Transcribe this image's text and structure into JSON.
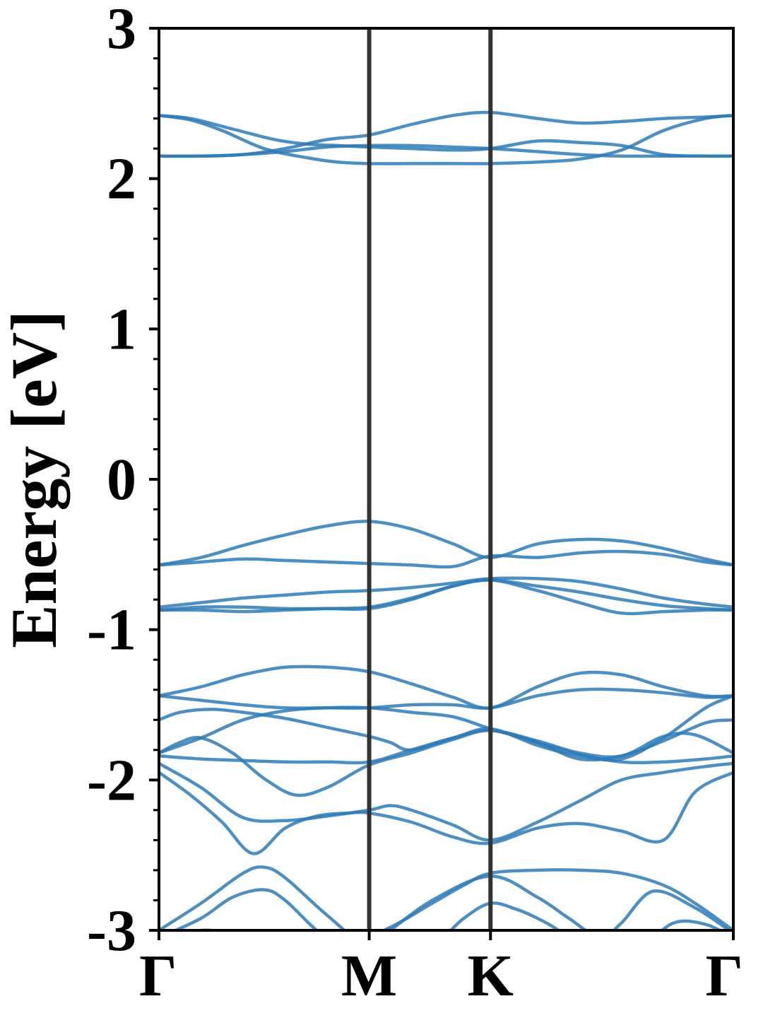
{
  "chart_data": {
    "type": "line",
    "title": "",
    "xlabel": "",
    "ylabel": "Energy [eV]",
    "ylim": [
      -3,
      3
    ],
    "y_ticks": [
      "3",
      "2",
      "1",
      "0",
      "-1",
      "-2",
      "-3"
    ],
    "y_tick_values": [
      3,
      2,
      1,
      0,
      -1,
      -2,
      -3
    ],
    "y_minor_step": 0.2,
    "x_ticks": [
      "Γ",
      "M",
      "K",
      "Γ"
    ],
    "x_tick_positions": [
      0,
      1,
      1.577,
      2.732
    ],
    "xlim": [
      0,
      2.732
    ],
    "grid": false,
    "legend": "none",
    "colors": {
      "bands": "#2e7bb6",
      "separators": "#333333",
      "axes": "#000000"
    },
    "series": [
      {
        "x": [
          0,
          0.15,
          0.35,
          0.55,
          0.7,
          0.85,
          1.0,
          1.2,
          1.4,
          1.577,
          1.8,
          2.0,
          2.2,
          2.4,
          2.6,
          2.732
        ],
        "values": [
          2.42,
          2.4,
          2.33,
          2.26,
          2.23,
          2.22,
          2.21,
          2.2,
          2.19,
          2.2,
          2.25,
          2.24,
          2.22,
          2.16,
          2.15,
          2.15
        ]
      },
      {
        "x": [
          0,
          0.15,
          0.3,
          0.5,
          0.7,
          0.85,
          1.0,
          1.2,
          1.4,
          1.577,
          1.8,
          2.0,
          2.2,
          2.4,
          2.6,
          2.732
        ],
        "values": [
          2.42,
          2.39,
          2.32,
          2.2,
          2.14,
          2.11,
          2.1,
          2.1,
          2.1,
          2.1,
          2.11,
          2.13,
          2.19,
          2.32,
          2.4,
          2.42
        ]
      },
      {
        "x": [
          0,
          0.2,
          0.4,
          0.6,
          0.8,
          1.0,
          1.2,
          1.4,
          1.577,
          1.8,
          2.0,
          2.2,
          2.4,
          2.6,
          2.732
        ],
        "values": [
          2.15,
          2.15,
          2.16,
          2.2,
          2.26,
          2.29,
          2.36,
          2.42,
          2.44,
          2.4,
          2.37,
          2.38,
          2.4,
          2.41,
          2.42
        ]
      },
      {
        "x": [
          0,
          0.2,
          0.4,
          0.6,
          0.8,
          1.0,
          1.2,
          1.4,
          1.577,
          1.8,
          2.0,
          2.2,
          2.4,
          2.6,
          2.732
        ],
        "values": [
          2.15,
          2.15,
          2.16,
          2.18,
          2.21,
          2.22,
          2.22,
          2.21,
          2.2,
          2.18,
          2.16,
          2.15,
          2.15,
          2.15,
          2.15
        ]
      },
      {
        "x": [
          0,
          0.2,
          0.4,
          0.6,
          0.8,
          1.0,
          1.2,
          1.4,
          1.577,
          1.8,
          2.0,
          2.2,
          2.4,
          2.6,
          2.732
        ],
        "values": [
          -0.57,
          -0.52,
          -0.44,
          -0.37,
          -0.31,
          -0.28,
          -0.33,
          -0.43,
          -0.52,
          -0.43,
          -0.4,
          -0.41,
          -0.46,
          -0.53,
          -0.57
        ]
      },
      {
        "x": [
          0,
          0.2,
          0.4,
          0.6,
          0.8,
          1.0,
          1.2,
          1.4,
          1.577,
          1.8,
          2.0,
          2.2,
          2.4,
          2.6,
          2.732
        ],
        "values": [
          -0.57,
          -0.55,
          -0.53,
          -0.54,
          -0.55,
          -0.56,
          -0.57,
          -0.58,
          -0.51,
          -0.52,
          -0.49,
          -0.48,
          -0.5,
          -0.55,
          -0.57
        ]
      },
      {
        "x": [
          0,
          0.2,
          0.4,
          0.6,
          0.8,
          1.0,
          1.2,
          1.4,
          1.577,
          1.8,
          2.0,
          2.2,
          2.4,
          2.6,
          2.732
        ],
        "values": [
          -0.85,
          -0.82,
          -0.79,
          -0.77,
          -0.75,
          -0.74,
          -0.72,
          -0.69,
          -0.66,
          -0.66,
          -0.68,
          -0.73,
          -0.79,
          -0.83,
          -0.85
        ]
      },
      {
        "x": [
          0,
          0.2,
          0.4,
          0.6,
          0.8,
          1.0,
          1.2,
          1.4,
          1.577,
          1.8,
          2.0,
          2.2,
          2.4,
          2.6,
          2.732
        ],
        "values": [
          -0.87,
          -0.85,
          -0.85,
          -0.86,
          -0.86,
          -0.86,
          -0.8,
          -0.71,
          -0.67,
          -0.71,
          -0.75,
          -0.8,
          -0.84,
          -0.86,
          -0.87
        ]
      },
      {
        "x": [
          0,
          0.2,
          0.4,
          0.6,
          0.8,
          1.0,
          1.2,
          1.4,
          1.577,
          1.8,
          2.0,
          2.2,
          2.4,
          2.6,
          2.732
        ],
        "values": [
          -0.87,
          -0.87,
          -0.88,
          -0.87,
          -0.86,
          -0.85,
          -0.79,
          -0.71,
          -0.67,
          -0.74,
          -0.82,
          -0.89,
          -0.88,
          -0.87,
          -0.87
        ]
      },
      {
        "x": [
          0,
          0.2,
          0.4,
          0.6,
          0.8,
          1.0,
          1.2,
          1.4,
          1.577,
          1.8,
          2.0,
          2.2,
          2.4,
          2.6,
          2.732
        ],
        "values": [
          -1.44,
          -1.38,
          -1.3,
          -1.25,
          -1.25,
          -1.28,
          -1.36,
          -1.45,
          -1.52,
          -1.38,
          -1.29,
          -1.3,
          -1.38,
          -1.44,
          -1.44
        ]
      },
      {
        "x": [
          0,
          0.2,
          0.4,
          0.6,
          0.8,
          1.0,
          1.2,
          1.4,
          1.577,
          1.8,
          2.0,
          2.2,
          2.4,
          2.6,
          2.732
        ],
        "values": [
          -1.44,
          -1.47,
          -1.5,
          -1.52,
          -1.52,
          -1.52,
          -1.5,
          -1.5,
          -1.52,
          -1.44,
          -1.4,
          -1.4,
          -1.42,
          -1.45,
          -1.44
        ]
      },
      {
        "x": [
          0,
          0.1,
          0.25,
          0.4,
          0.6,
          0.8,
          1.0,
          1.1,
          1.2,
          1.4,
          1.577,
          1.8,
          2.0,
          2.2,
          2.4,
          2.6,
          2.732
        ],
        "values": [
          -1.6,
          -1.55,
          -1.53,
          -1.55,
          -1.59,
          -1.65,
          -1.71,
          -1.75,
          -1.8,
          -1.72,
          -1.66,
          -1.77,
          -1.84,
          -1.86,
          -1.72,
          -1.52,
          -1.44
        ]
      },
      {
        "x": [
          0,
          0.2,
          0.4,
          0.6,
          0.8,
          1.0,
          1.2,
          1.4,
          1.577,
          1.8,
          2.0,
          2.2,
          2.4,
          2.6,
          2.732
        ],
        "values": [
          -1.82,
          -1.72,
          -1.6,
          -1.54,
          -1.52,
          -1.52,
          -1.55,
          -1.58,
          -1.66,
          -1.75,
          -1.86,
          -1.84,
          -1.74,
          -1.62,
          -1.6
        ]
      },
      {
        "x": [
          0,
          0.1,
          0.2,
          0.35,
          0.5,
          0.65,
          0.8,
          1.0,
          1.2,
          1.4,
          1.577,
          1.8,
          2.0,
          2.2,
          2.4,
          2.55,
          2.732
        ],
        "values": [
          -1.82,
          -1.75,
          -1.72,
          -1.82,
          -1.99,
          -2.1,
          -2.05,
          -1.9,
          -1.82,
          -1.73,
          -1.67,
          -1.74,
          -1.82,
          -1.84,
          -1.71,
          -1.7,
          -1.82
        ]
      },
      {
        "x": [
          0,
          0.2,
          0.4,
          0.6,
          0.8,
          1.0,
          1.2,
          1.4,
          1.577,
          1.8,
          2.0,
          2.2,
          2.4,
          2.6,
          2.732
        ],
        "values": [
          -1.84,
          -1.86,
          -1.87,
          -1.88,
          -1.88,
          -1.88,
          -1.8,
          -1.72,
          -1.67,
          -1.75,
          -1.83,
          -1.88,
          -1.88,
          -1.86,
          -1.84
        ]
      },
      {
        "x": [
          0,
          0.2,
          0.4,
          0.6,
          0.8,
          1.0,
          1.1,
          1.2,
          1.4,
          1.577,
          1.8,
          2.0,
          2.2,
          2.4,
          2.6,
          2.732
        ],
        "values": [
          -1.89,
          -2.05,
          -2.25,
          -2.27,
          -2.24,
          -2.2,
          -2.17,
          -2.2,
          -2.3,
          -2.4,
          -2.28,
          -2.14,
          -2.0,
          -1.95,
          -1.91,
          -1.89
        ]
      },
      {
        "x": [
          0,
          0.15,
          0.3,
          0.45,
          0.6,
          0.75,
          0.9,
          1.0,
          1.2,
          1.4,
          1.577,
          1.8,
          2.0,
          2.2,
          2.4,
          2.55,
          2.732
        ],
        "values": [
          -1.95,
          -2.1,
          -2.28,
          -2.49,
          -2.32,
          -2.24,
          -2.22,
          -2.22,
          -2.28,
          -2.38,
          -2.42,
          -2.32,
          -2.29,
          -2.34,
          -2.4,
          -2.08,
          -1.95
        ]
      },
      {
        "x": [
          0,
          0.2,
          0.4,
          0.5,
          0.6,
          0.8,
          0.95,
          1.1,
          1.3,
          1.45,
          1.577,
          1.8,
          2.0,
          2.2,
          2.4,
          2.55,
          2.732
        ],
        "values": [
          -3.0,
          -2.82,
          -2.62,
          -2.58,
          -2.65,
          -2.9,
          -3.05,
          -2.98,
          -2.82,
          -2.7,
          -2.62,
          -2.6,
          -2.6,
          -2.62,
          -2.7,
          -2.82,
          -3.0
        ]
      },
      {
        "x": [
          0,
          0.2,
          0.35,
          0.5,
          0.6,
          0.75,
          0.9,
          1.05,
          1.3,
          1.577,
          1.8,
          1.95,
          2.1,
          2.2,
          2.35,
          2.55,
          2.732
        ],
        "values": [
          -3.05,
          -2.92,
          -2.78,
          -2.73,
          -2.8,
          -3.0,
          -3.15,
          -3.05,
          -2.8,
          -2.64,
          -2.78,
          -2.92,
          -3.05,
          -2.95,
          -2.74,
          -2.85,
          -3.02
        ]
      },
      {
        "x": [
          0,
          0.1,
          0.2,
          0.35,
          0.5,
          0.7,
          1.0,
          1.3,
          1.45,
          1.577,
          1.7,
          1.8,
          1.9,
          2.1,
          2.3,
          2.45,
          2.6,
          2.732
        ],
        "values": [
          -3.15,
          -3.05,
          -3.0,
          -3.02,
          -3.08,
          -3.2,
          -3.3,
          -3.1,
          -2.92,
          -2.82,
          -2.86,
          -2.92,
          -3.0,
          -3.2,
          -3.1,
          -2.95,
          -2.96,
          -3.05
        ]
      }
    ]
  }
}
